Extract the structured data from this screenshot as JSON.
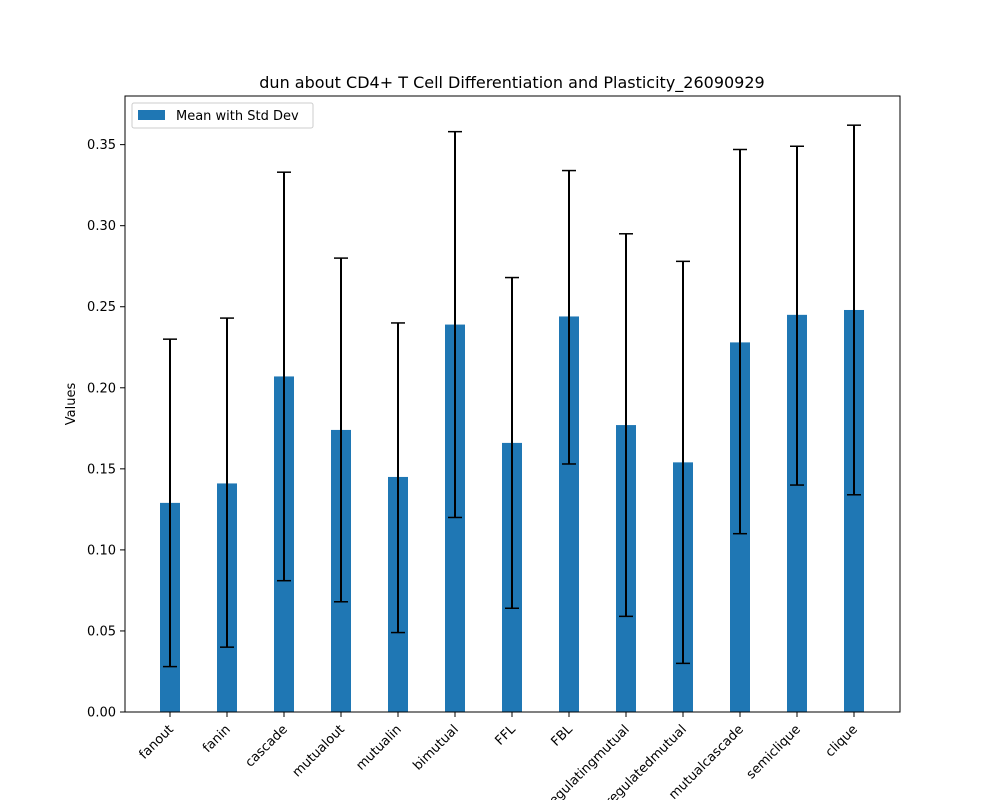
{
  "chart_data": {
    "type": "bar",
    "title": "dun about CD4+ T Cell Differentiation and Plasticity_26090929",
    "xlabel": "",
    "ylabel": "Values",
    "ylim": [
      0,
      0.38
    ],
    "yticks": [
      0.0,
      0.05,
      0.1,
      0.15,
      0.2,
      0.25,
      0.3,
      0.35
    ],
    "grid": false,
    "legend": {
      "placement": "top-left",
      "entries": [
        "Mean with Std Dev"
      ]
    },
    "bar_color": "#1f77b4",
    "error_color": "#000000",
    "categories": [
      "fanout",
      "fanin",
      "cascade",
      "mutualout",
      "mutualin",
      "bimutual",
      "FFL",
      "FBL",
      "regulatingmutual",
      "regulatedmutual",
      "mutualcascade",
      "semiclique",
      "clique"
    ],
    "series": [
      {
        "name": "Mean with Std Dev",
        "values": [
          0.129,
          0.141,
          0.207,
          0.174,
          0.145,
          0.239,
          0.166,
          0.244,
          0.177,
          0.154,
          0.228,
          0.245,
          0.248
        ],
        "err_low": [
          0.028,
          0.04,
          0.081,
          0.068,
          0.049,
          0.12,
          0.064,
          0.153,
          0.059,
          0.03,
          0.11,
          0.14,
          0.134
        ],
        "err_high": [
          0.23,
          0.243,
          0.333,
          0.28,
          0.24,
          0.358,
          0.268,
          0.334,
          0.295,
          0.278,
          0.347,
          0.349,
          0.362
        ]
      }
    ]
  }
}
